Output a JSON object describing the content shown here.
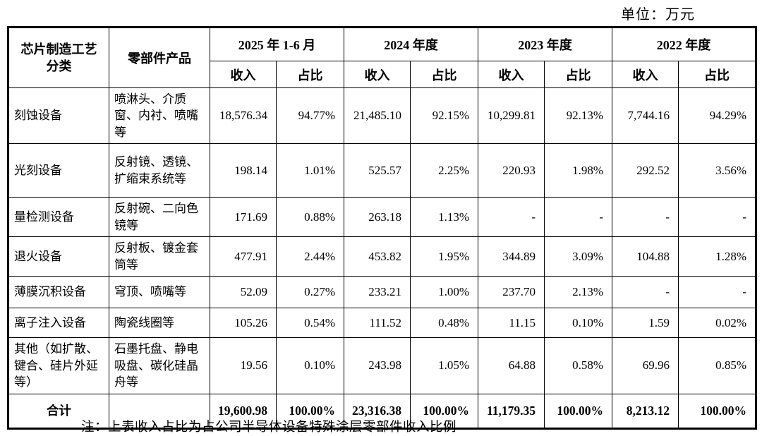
{
  "unit_label": "单位：万元",
  "colors": {
    "text": "#000000",
    "border": "#000000",
    "background": "#ffffff"
  },
  "table": {
    "header": {
      "category": "芯片制造工艺\n分类",
      "products": "零部件产品",
      "periods": [
        "2025 年 1-6 月",
        "2024 年度",
        "2023 年度",
        "2022 年度"
      ],
      "revenue_label": "收入",
      "share_label": "占比"
    },
    "rows": [
      {
        "category": "刻蚀设备",
        "products": "喷淋头、介质窗、内衬、喷嘴等",
        "values": [
          "18,576.34",
          "94.77%",
          "21,485.10",
          "92.15%",
          "10,299.81",
          "92.13%",
          "7,744.16",
          "94.29%"
        ]
      },
      {
        "category": "光刻设备",
        "products": "反射镜、透镜、扩缩束系统等",
        "values": [
          "198.14",
          "1.01%",
          "525.57",
          "2.25%",
          "220.93",
          "1.98%",
          "292.52",
          "3.56%"
        ]
      },
      {
        "category": "量检测设备",
        "products": "反射碗、二向色镜等",
        "values": [
          "171.69",
          "0.88%",
          "263.18",
          "1.13%",
          "-",
          "-",
          "-",
          "-"
        ]
      },
      {
        "category": "退火设备",
        "products": "反射板、镀金套筒等",
        "values": [
          "477.91",
          "2.44%",
          "453.82",
          "1.95%",
          "344.89",
          "3.09%",
          "104.88",
          "1.28%"
        ]
      },
      {
        "category": "薄膜沉积设备",
        "products": "穹顶、喷嘴等",
        "values": [
          "52.09",
          "0.27%",
          "233.21",
          "1.00%",
          "237.70",
          "2.13%",
          "-",
          "-"
        ]
      },
      {
        "category": "离子注入设备",
        "products": "陶瓷线圈等",
        "values": [
          "105.26",
          "0.54%",
          "111.52",
          "0.48%",
          "11.15",
          "0.10%",
          "1.59",
          "0.02%"
        ]
      },
      {
        "category": "其他（如扩散、键合、硅片外延等）",
        "products": "石墨托盘、静电吸盘、碳化硅晶舟等",
        "values": [
          "19.56",
          "0.10%",
          "243.98",
          "1.05%",
          "64.88",
          "0.58%",
          "69.96",
          "0.85%"
        ]
      }
    ],
    "total": {
      "category": "合计",
      "products": "",
      "values": [
        "19,600.98",
        "100.00%",
        "23,316.38",
        "100.00%",
        "11,179.35",
        "100.00%",
        "8,213.12",
        "100.00%"
      ]
    }
  },
  "footnote": "注：上表收入占比为占公司半导体设备特殊涂层零部件收入比例"
}
